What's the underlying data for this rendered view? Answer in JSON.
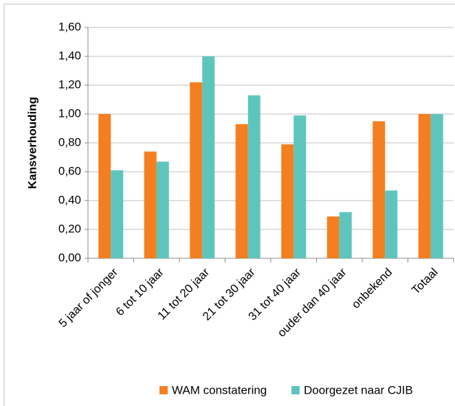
{
  "chart_data": {
    "type": "bar",
    "y_label": "Kansverhouding",
    "categories": [
      "5 jaar of jonger",
      "6 tot 10 jaar",
      "11 tot 20 jaar",
      "21 tot 30 jaar",
      "31 tot 40 jaar",
      "ouder dan 40 jaar",
      "onbekend",
      "Totaal"
    ],
    "series": [
      {
        "name": "WAM constatering",
        "color": "#f47f20",
        "values": [
          1.0,
          0.74,
          1.22,
          0.93,
          0.79,
          0.29,
          0.95,
          1.0
        ]
      },
      {
        "name": "Doorgezet naar CJIB",
        "color": "#5ec5bc",
        "values": [
          0.61,
          0.67,
          1.4,
          1.13,
          0.99,
          0.32,
          0.47,
          1.0
        ]
      }
    ],
    "ylim": [
      0,
      1.6
    ],
    "yticks": [
      {
        "value": 0,
        "label": "0,00"
      },
      {
        "value": 0.2,
        "label": "0,20"
      },
      {
        "value": 0.4,
        "label": "0,40"
      },
      {
        "value": 0.6,
        "label": "0,60"
      },
      {
        "value": 0.8,
        "label": "0,80"
      },
      {
        "value": 1.0,
        "label": "1,00"
      },
      {
        "value": 1.2,
        "label": "1,20"
      },
      {
        "value": 1.4,
        "label": "1,40"
      },
      {
        "value": 1.6,
        "label": "1,60"
      }
    ],
    "grid": true,
    "legend": "bottom"
  }
}
